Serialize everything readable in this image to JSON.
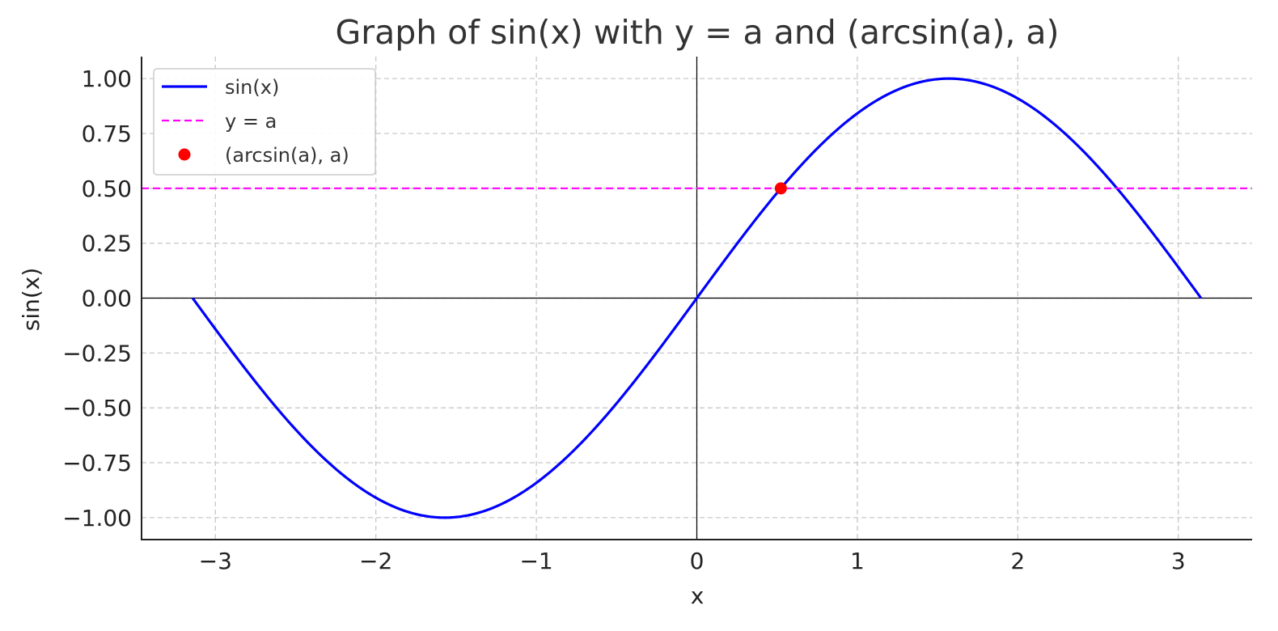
{
  "chart_data": {
    "type": "line",
    "title": "Graph of sin(x) with y = a and (arcsin(a), a)",
    "xlabel": "x",
    "ylabel": "sin(x)",
    "xlim": [
      -3.46,
      3.46
    ],
    "ylim": [
      -1.1,
      1.1
    ],
    "x_ticks": [
      -3,
      -2,
      -1,
      0,
      1,
      2,
      3
    ],
    "x_tick_labels": [
      "−3",
      "−2",
      "−1",
      "0",
      "1",
      "2",
      "3"
    ],
    "y_ticks": [
      1.0,
      0.75,
      0.5,
      0.25,
      0.0,
      -0.25,
      -0.5,
      -0.75,
      -1.0
    ],
    "y_tick_labels": [
      "1.00",
      "0.75",
      "0.50",
      "0.25",
      "0.00",
      "−0.25",
      "−0.50",
      "−0.75",
      "−1.00"
    ],
    "grid": true,
    "legend_position": "top-left",
    "series": [
      {
        "name": "sin(x)",
        "kind": "line",
        "color": "#0000ff",
        "function": "sin",
        "x_range": [
          -3.14159,
          3.14159
        ]
      },
      {
        "name": "y = a",
        "kind": "hline",
        "color": "#ff00ff",
        "dashed": true,
        "y": 0.5
      },
      {
        "name": "(arcsin(a), a)",
        "kind": "point",
        "color": "#ff0000",
        "x": 0.5236,
        "y": 0.5
      }
    ],
    "reference_lines": [
      {
        "axis": "x",
        "value": 0,
        "color": "#000000"
      },
      {
        "axis": "y",
        "value": 0,
        "color": "#000000"
      }
    ]
  }
}
